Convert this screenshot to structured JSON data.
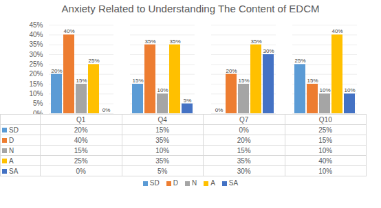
{
  "chart_data": {
    "type": "bar",
    "title": "Anxiety Related to Understanding The Content of EDCM",
    "categories": [
      "Q1",
      "Q4",
      "Q7",
      "Q10"
    ],
    "series": [
      {
        "name": "SD",
        "color": "#5b9bd5",
        "values": [
          20,
          15,
          0,
          25
        ],
        "value_labels": [
          "20%",
          "15%",
          "0%",
          "25%"
        ]
      },
      {
        "name": "D",
        "color": "#ed7d31",
        "values": [
          40,
          35,
          20,
          15
        ],
        "value_labels": [
          "40%",
          "35%",
          "20%",
          "15%"
        ]
      },
      {
        "name": "N",
        "color": "#a5a5a5",
        "values": [
          15,
          10,
          15,
          10
        ],
        "value_labels": [
          "15%",
          "10%",
          "15%",
          "10%"
        ]
      },
      {
        "name": "A",
        "color": "#ffc000",
        "values": [
          25,
          35,
          35,
          40
        ],
        "value_labels": [
          "25%",
          "35%",
          "35%",
          "40%"
        ]
      },
      {
        "name": "SA",
        "color": "#4472c4",
        "values": [
          0,
          5,
          30,
          10
        ],
        "value_labels": [
          "0%",
          "5%",
          "30%",
          "10%"
        ]
      }
    ],
    "ylim": [
      0,
      45
    ],
    "yticks": [
      {
        "value": 0,
        "label": "0%"
      },
      {
        "value": 5,
        "label": "5%"
      },
      {
        "value": 10,
        "label": "10%"
      },
      {
        "value": 15,
        "label": "15%"
      },
      {
        "value": 20,
        "label": "20%"
      },
      {
        "value": 25,
        "label": "25%"
      },
      {
        "value": 30,
        "label": "30%"
      },
      {
        "value": 35,
        "label": "35%"
      },
      {
        "value": 40,
        "label": "40%"
      },
      {
        "value": 45,
        "label": "45%"
      }
    ],
    "grid": true,
    "data_labels": true,
    "legend": "bottom"
  }
}
